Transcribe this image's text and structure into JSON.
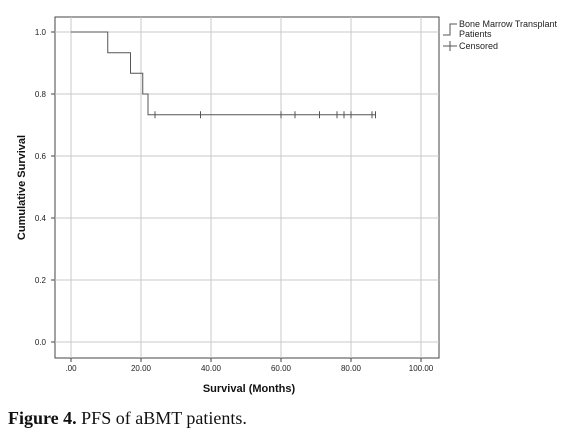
{
  "chart_data": {
    "type": "line",
    "subtype": "kaplan-meier",
    "xlabel": "Survival (Months)",
    "ylabel": "Cumulative Survival",
    "x_ticks": [
      0,
      20,
      40,
      60,
      80,
      100
    ],
    "x_tick_labels": [
      ".00",
      "20.00",
      "40.00",
      "60.00",
      "80.00",
      "100.00"
    ],
    "y_ticks": [
      0.0,
      0.2,
      0.4,
      0.6,
      0.8,
      1.0
    ],
    "y_tick_labels": [
      "0.0",
      "0.2",
      "0.4",
      "0.6",
      "0.8",
      "1.0"
    ],
    "xlim": [
      0,
      100
    ],
    "ylim": [
      0,
      1.0
    ],
    "grid": true,
    "legend_placement": "top-right outside",
    "colors": {
      "line": "#555555",
      "grid": "#c8c8c8",
      "axis": "#444444"
    },
    "series": [
      {
        "name": "Bone Marrow Transplant Patients",
        "steps": [
          {
            "x": 0,
            "y": 1.0
          },
          {
            "x": 10.5,
            "y": 0.933
          },
          {
            "x": 17,
            "y": 0.867
          },
          {
            "x": 20.5,
            "y": 0.8
          },
          {
            "x": 22,
            "y": 0.733
          },
          {
            "x": 87,
            "y": 0.733
          }
        ],
        "censored": [
          {
            "x": 24,
            "y": 0.733
          },
          {
            "x": 37,
            "y": 0.733
          },
          {
            "x": 60,
            "y": 0.733
          },
          {
            "x": 64,
            "y": 0.733
          },
          {
            "x": 71,
            "y": 0.733
          },
          {
            "x": 76,
            "y": 0.733
          },
          {
            "x": 78,
            "y": 0.733
          },
          {
            "x": 80,
            "y": 0.733
          },
          {
            "x": 86,
            "y": 0.733
          },
          {
            "x": 87,
            "y": 0.733
          }
        ]
      }
    ],
    "legend": [
      {
        "label_lines": [
          "Bone Marrow Transplant",
          "Patients"
        ],
        "marker": "step-line"
      },
      {
        "label_lines": [
          "Censored"
        ],
        "marker": "plus"
      }
    ]
  },
  "caption": {
    "label": "Figure 4.",
    "text": " PFS of aBMT patients."
  }
}
